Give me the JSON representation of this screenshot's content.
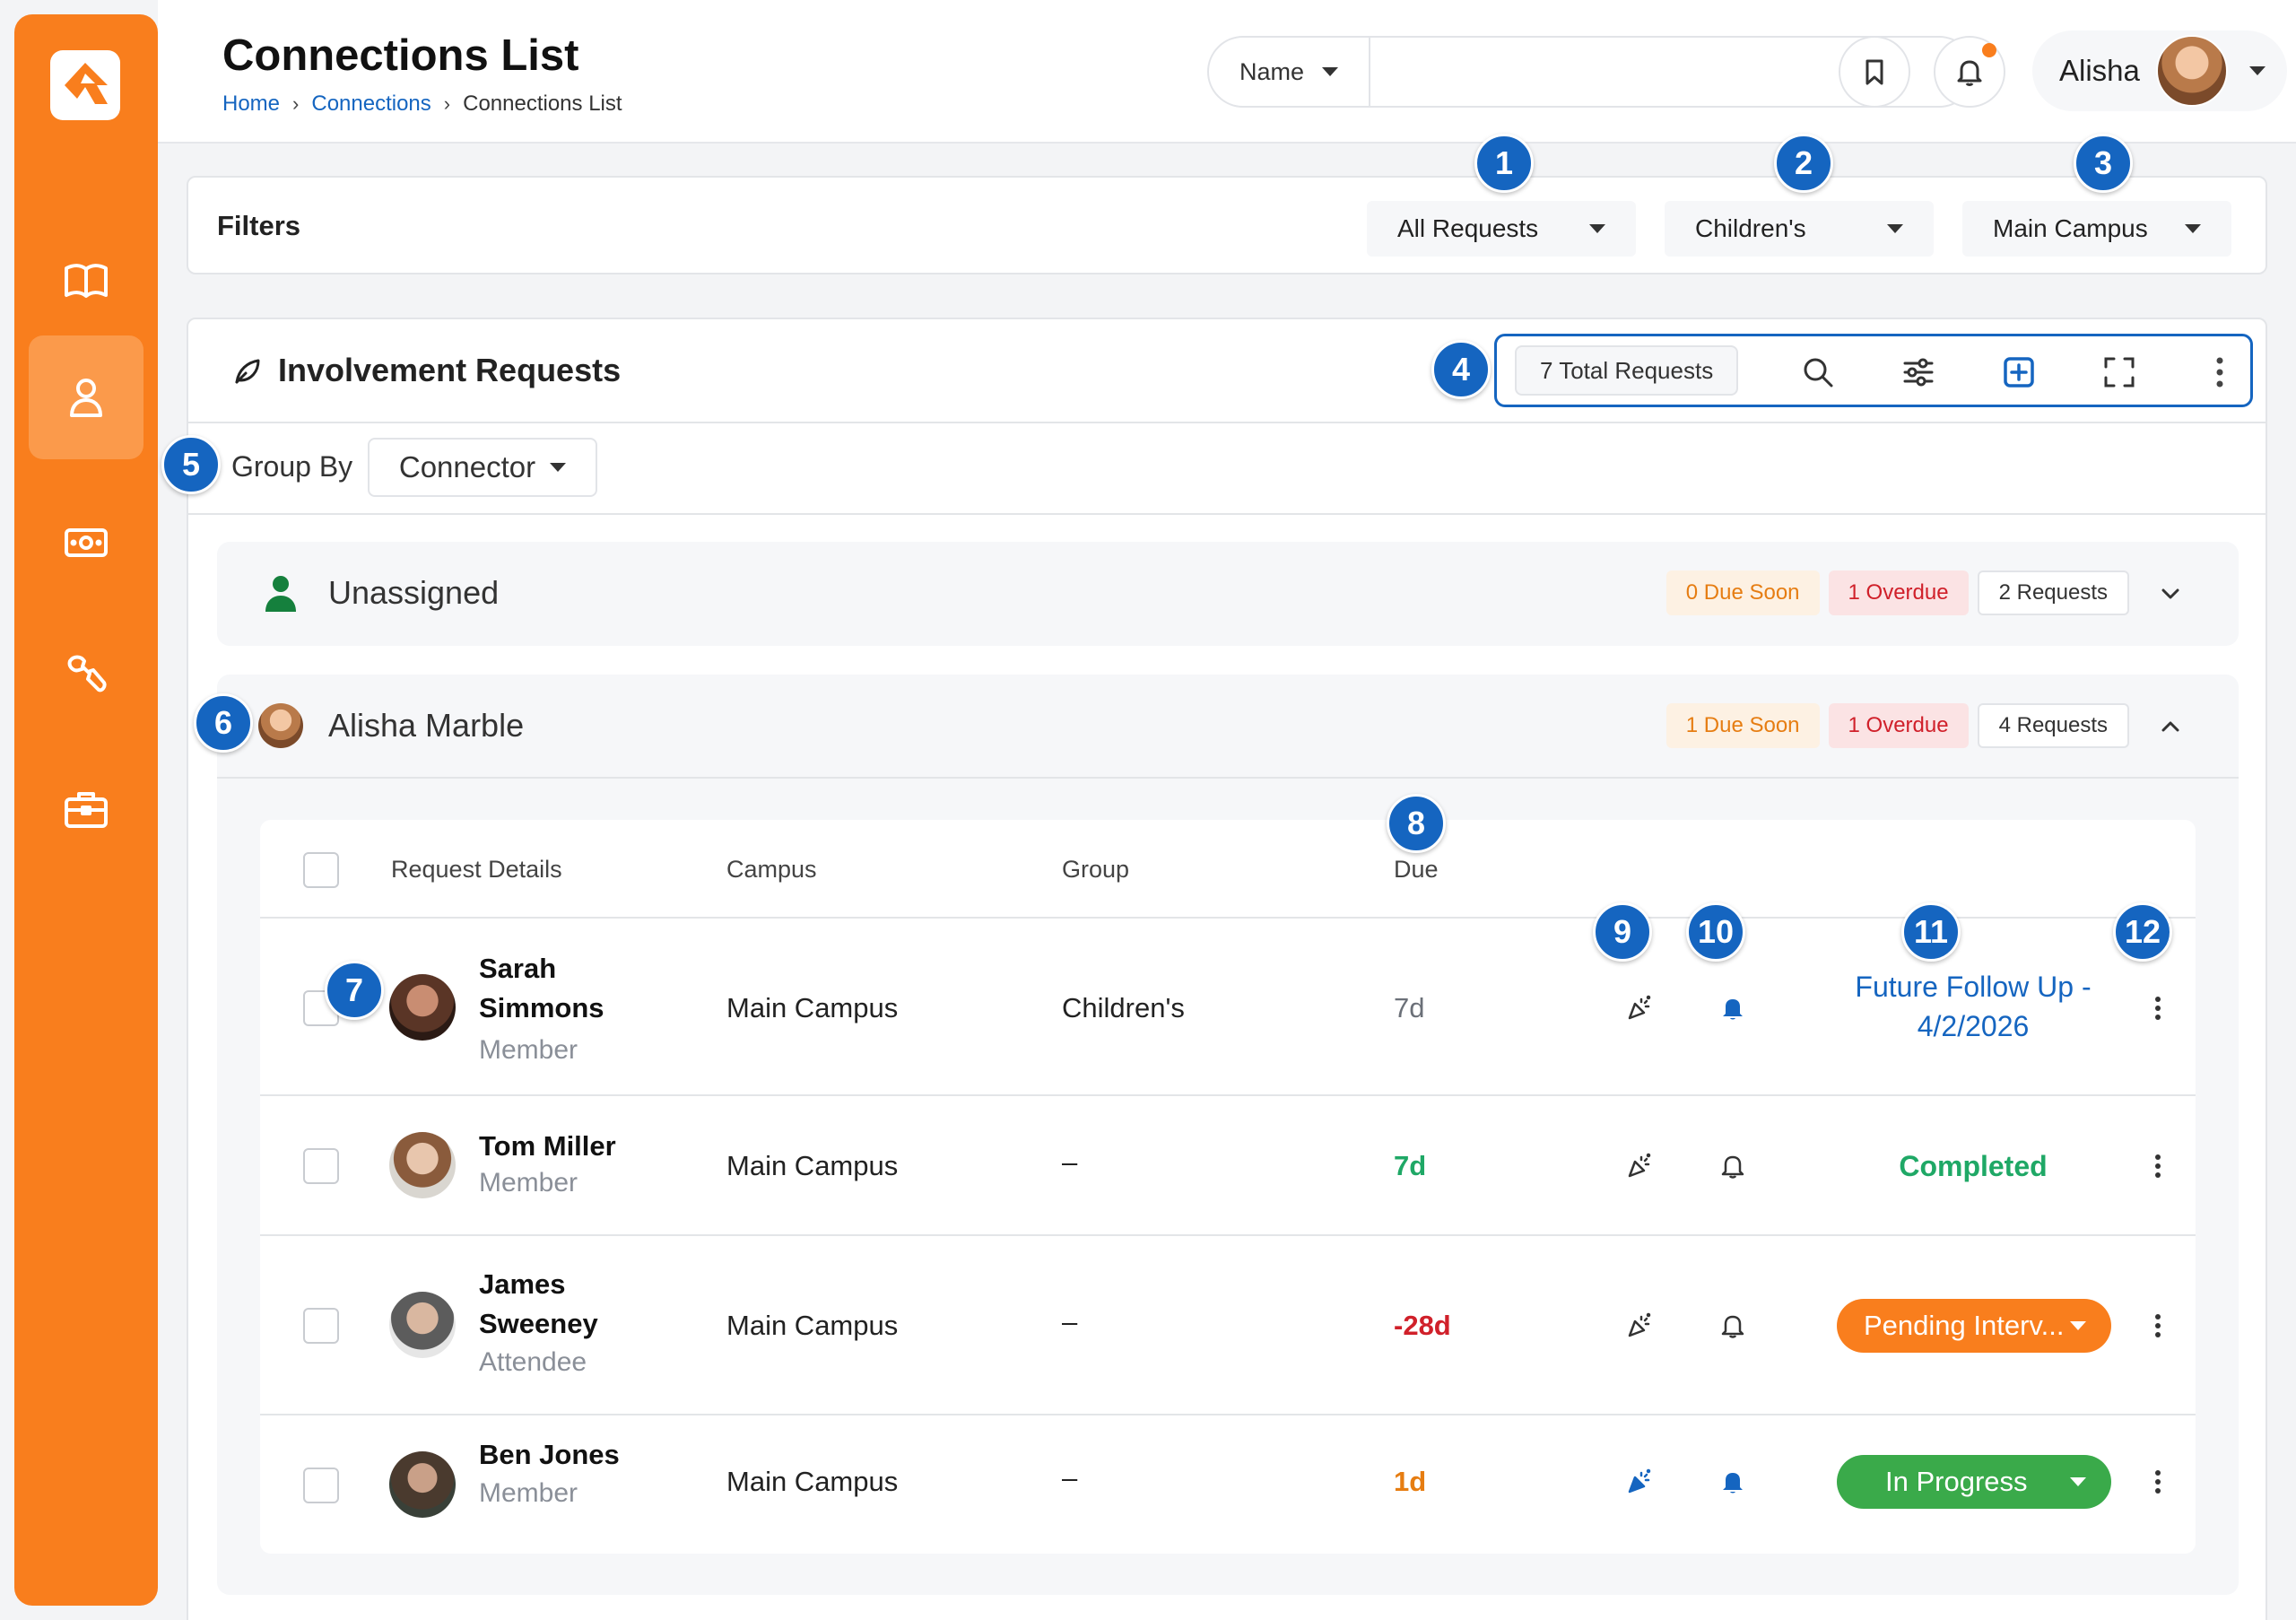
{
  "header": {
    "title": "Connections List",
    "breadcrumb": [
      "Home",
      "Connections",
      "Connections List"
    ],
    "breadcrumb_sep": "›",
    "search": {
      "type": "Name",
      "placeholder": ""
    },
    "user": {
      "name": "Alisha"
    }
  },
  "sidebar": {
    "items": [
      {
        "name": "book-icon",
        "active": false
      },
      {
        "name": "person-icon",
        "active": true
      },
      {
        "name": "money-icon",
        "active": false
      },
      {
        "name": "wrench-icon",
        "active": false
      },
      {
        "name": "briefcase-icon",
        "active": false
      }
    ]
  },
  "callouts": [
    "1",
    "2",
    "3",
    "4",
    "5",
    "6",
    "7",
    "8",
    "9",
    "10",
    "11",
    "12"
  ],
  "filters": {
    "label": "Filters",
    "request_type": "All Requests",
    "ministry": "Children's",
    "campus": "Main Campus"
  },
  "requests": {
    "title": "Involvement Requests",
    "total": "7 Total Requests",
    "group_by_label": "Group By",
    "group_by_value": "Connector",
    "columns": {
      "details": "Request Details",
      "campus": "Campus",
      "group": "Group",
      "due": "Due"
    },
    "groups": [
      {
        "name": "Unassigned",
        "due_soon": "0 Due Soon",
        "overdue": "1 Overdue",
        "count": "2 Requests"
      },
      {
        "name": "Alisha Marble",
        "due_soon": "1 Due Soon",
        "overdue": "1 Overdue",
        "count": "4 Requests"
      }
    ],
    "rows": [
      {
        "name": "Sarah Simmons",
        "role": "Member",
        "campus": "Main Campus",
        "group": "Children's",
        "due": "7d",
        "status": "Future Follow Up - 4/2/2026"
      },
      {
        "name": "Tom Miller",
        "role": "Member",
        "campus": "Main Campus",
        "group": "–",
        "due": "7d",
        "status": "Completed"
      },
      {
        "name": "James Sweeney",
        "role": "Attendee",
        "campus": "Main Campus",
        "group": "–",
        "due": "-28d",
        "status": "Pending Interv..."
      },
      {
        "name": "Ben Jones",
        "role": "Member",
        "campus": "Main Campus",
        "group": "–",
        "due": "1d",
        "status": "In Progress"
      }
    ]
  },
  "colors": {
    "brand_orange": "#f97e1d",
    "accent_blue": "#1565c0",
    "success_green": "#1fa866",
    "progress_green": "#3aaa4a",
    "danger_red": "#d0202a",
    "warning_orange": "#e67d12"
  }
}
